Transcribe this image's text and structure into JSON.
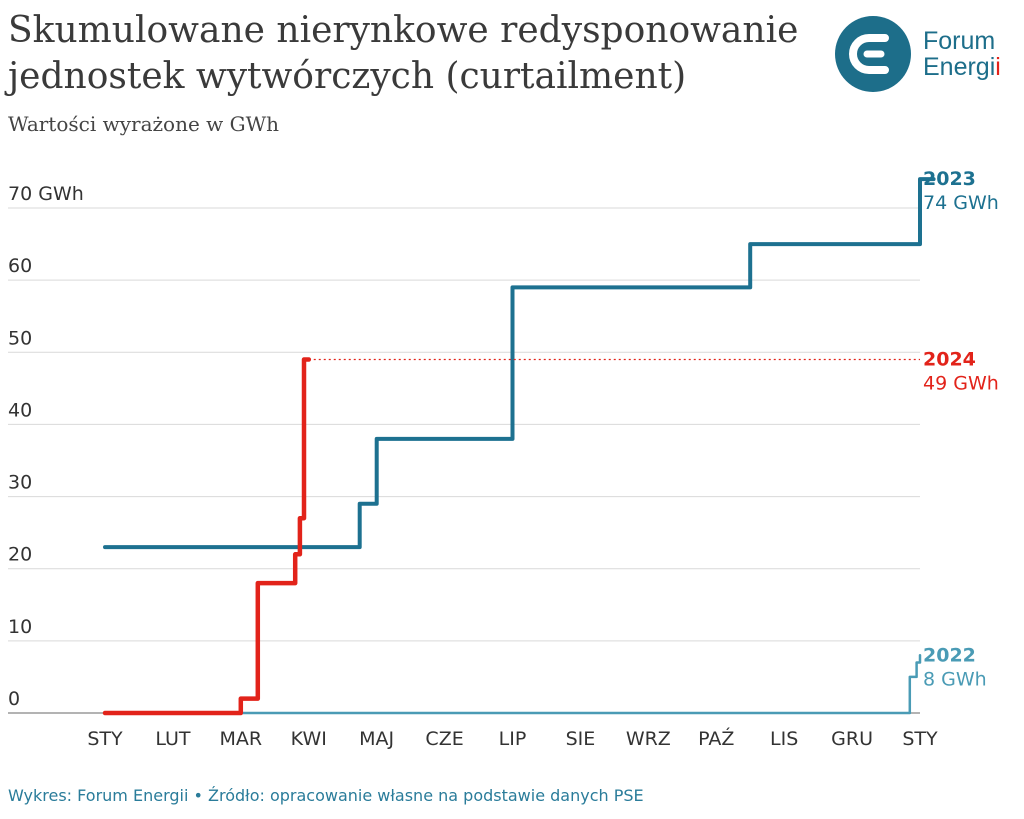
{
  "header": {
    "title_line1": "Skumulowane nierynkowe redysponowanie",
    "title_line2": "jednostek wytwórczych (curtailment)",
    "subtitle": "Wartości wyrażone w GWh"
  },
  "logo": {
    "name_line1": "Forum",
    "name_line2_main": "Energi",
    "name_line2_accent": "i",
    "colors": {
      "primary": "#1d6e8a",
      "accent": "#e2231a"
    }
  },
  "footer": {
    "text": "Wykres: Forum Energii • Źródło: opracowanie własne na podstawie danych PSE"
  },
  "chart_data": {
    "type": "line",
    "step": true,
    "title": "Skumulowane nierynkowe redysponowanie jednostek wytwórczych (curtailment)",
    "subtitle": "Wartości wyrażone w GWh",
    "x_tick_labels": [
      "STY",
      "LUT",
      "MAR",
      "KWI",
      "MAJ",
      "CZE",
      "LIP",
      "SIE",
      "WRZ",
      "PAŹ",
      "LIS",
      "GRU",
      "STY"
    ],
    "x_domain": [
      0,
      12.3
    ],
    "y_tick_labels": [
      "0",
      "10",
      "20",
      "30",
      "40",
      "50",
      "60",
      "70 GWh"
    ],
    "y_ticks": [
      0,
      10,
      20,
      30,
      40,
      50,
      60,
      70
    ],
    "ylim": [
      0,
      70
    ],
    "grid": true,
    "series": [
      {
        "name": "2022",
        "total_label": "8 GWh",
        "color": "#4a9bb5",
        "x": [
          0,
          11.85,
          11.85,
          11.95,
          11.95,
          12.0,
          12.0
        ],
        "y": [
          0,
          0,
          5,
          5,
          7,
          7,
          8
        ]
      },
      {
        "name": "2023",
        "total_label": "74 GWh",
        "color": "#1d7190",
        "x": [
          0,
          3.75,
          3.75,
          4.0,
          4.0,
          6.0,
          6.0,
          9.5,
          9.5,
          12.0,
          12.0,
          12.2
        ],
        "y": [
          23,
          23,
          29,
          29,
          38,
          38,
          59,
          59,
          65,
          65,
          74,
          74
        ]
      },
      {
        "name": "2024",
        "total_label": "49 GWh",
        "color": "#e2231a",
        "x": [
          0,
          2.0,
          2.0,
          2.25,
          2.25,
          2.8,
          2.8,
          2.87,
          2.87,
          2.93,
          2.93,
          3.0
        ],
        "y": [
          0,
          0,
          2,
          2,
          18,
          18,
          22,
          22,
          27,
          27,
          49,
          49
        ]
      }
    ],
    "reference_line": {
      "series": "2024",
      "value": 49,
      "style": "dotted"
    }
  }
}
